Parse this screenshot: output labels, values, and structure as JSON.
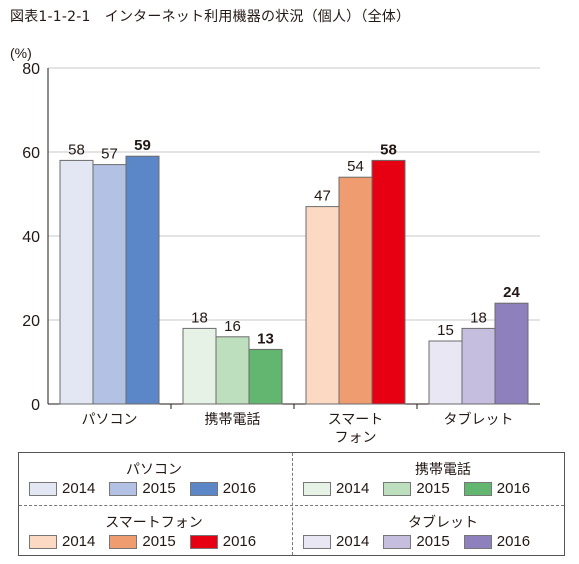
{
  "figure_title": "図表1-1-2-1　インターネット利用機器の状況（個人）（全体）",
  "chart_data": {
    "type": "bar",
    "yunit": "(%)",
    "ylim": [
      0,
      80
    ],
    "yticks": [
      "0",
      "20",
      "40",
      "60",
      "80"
    ],
    "grid": true,
    "categories": [
      {
        "label_lines": [
          "パソコン"
        ]
      },
      {
        "label_lines": [
          "携帯電話"
        ]
      },
      {
        "label_lines": [
          "スマート",
          "フォン"
        ]
      },
      {
        "label_lines": [
          "タブレット"
        ]
      }
    ],
    "years": [
      "2014",
      "2015",
      "2016"
    ],
    "values": [
      [
        58,
        57,
        59
      ],
      [
        18,
        16,
        13
      ],
      [
        47,
        54,
        58
      ],
      [
        15,
        18,
        24
      ]
    ],
    "colors": [
      [
        "#e3e7f4",
        "#b3c1e4",
        "#5b86c7"
      ],
      [
        "#e6f2e6",
        "#bddfbd",
        "#63b66f"
      ],
      [
        "#fbd9c3",
        "#ef9c70",
        "#e60012"
      ],
      [
        "#e8e7f3",
        "#c5bedf",
        "#8e80bc"
      ]
    ]
  },
  "legend": [
    {
      "name": "パソコン",
      "years": [
        "2014",
        "2015",
        "2016"
      ]
    },
    {
      "name": "携帯電話",
      "years": [
        "2014",
        "2015",
        "2016"
      ]
    },
    {
      "name": "スマートフォン",
      "years": [
        "2014",
        "2015",
        "2016"
      ]
    },
    {
      "name": "タブレット",
      "years": [
        "2014",
        "2015",
        "2016"
      ]
    }
  ]
}
